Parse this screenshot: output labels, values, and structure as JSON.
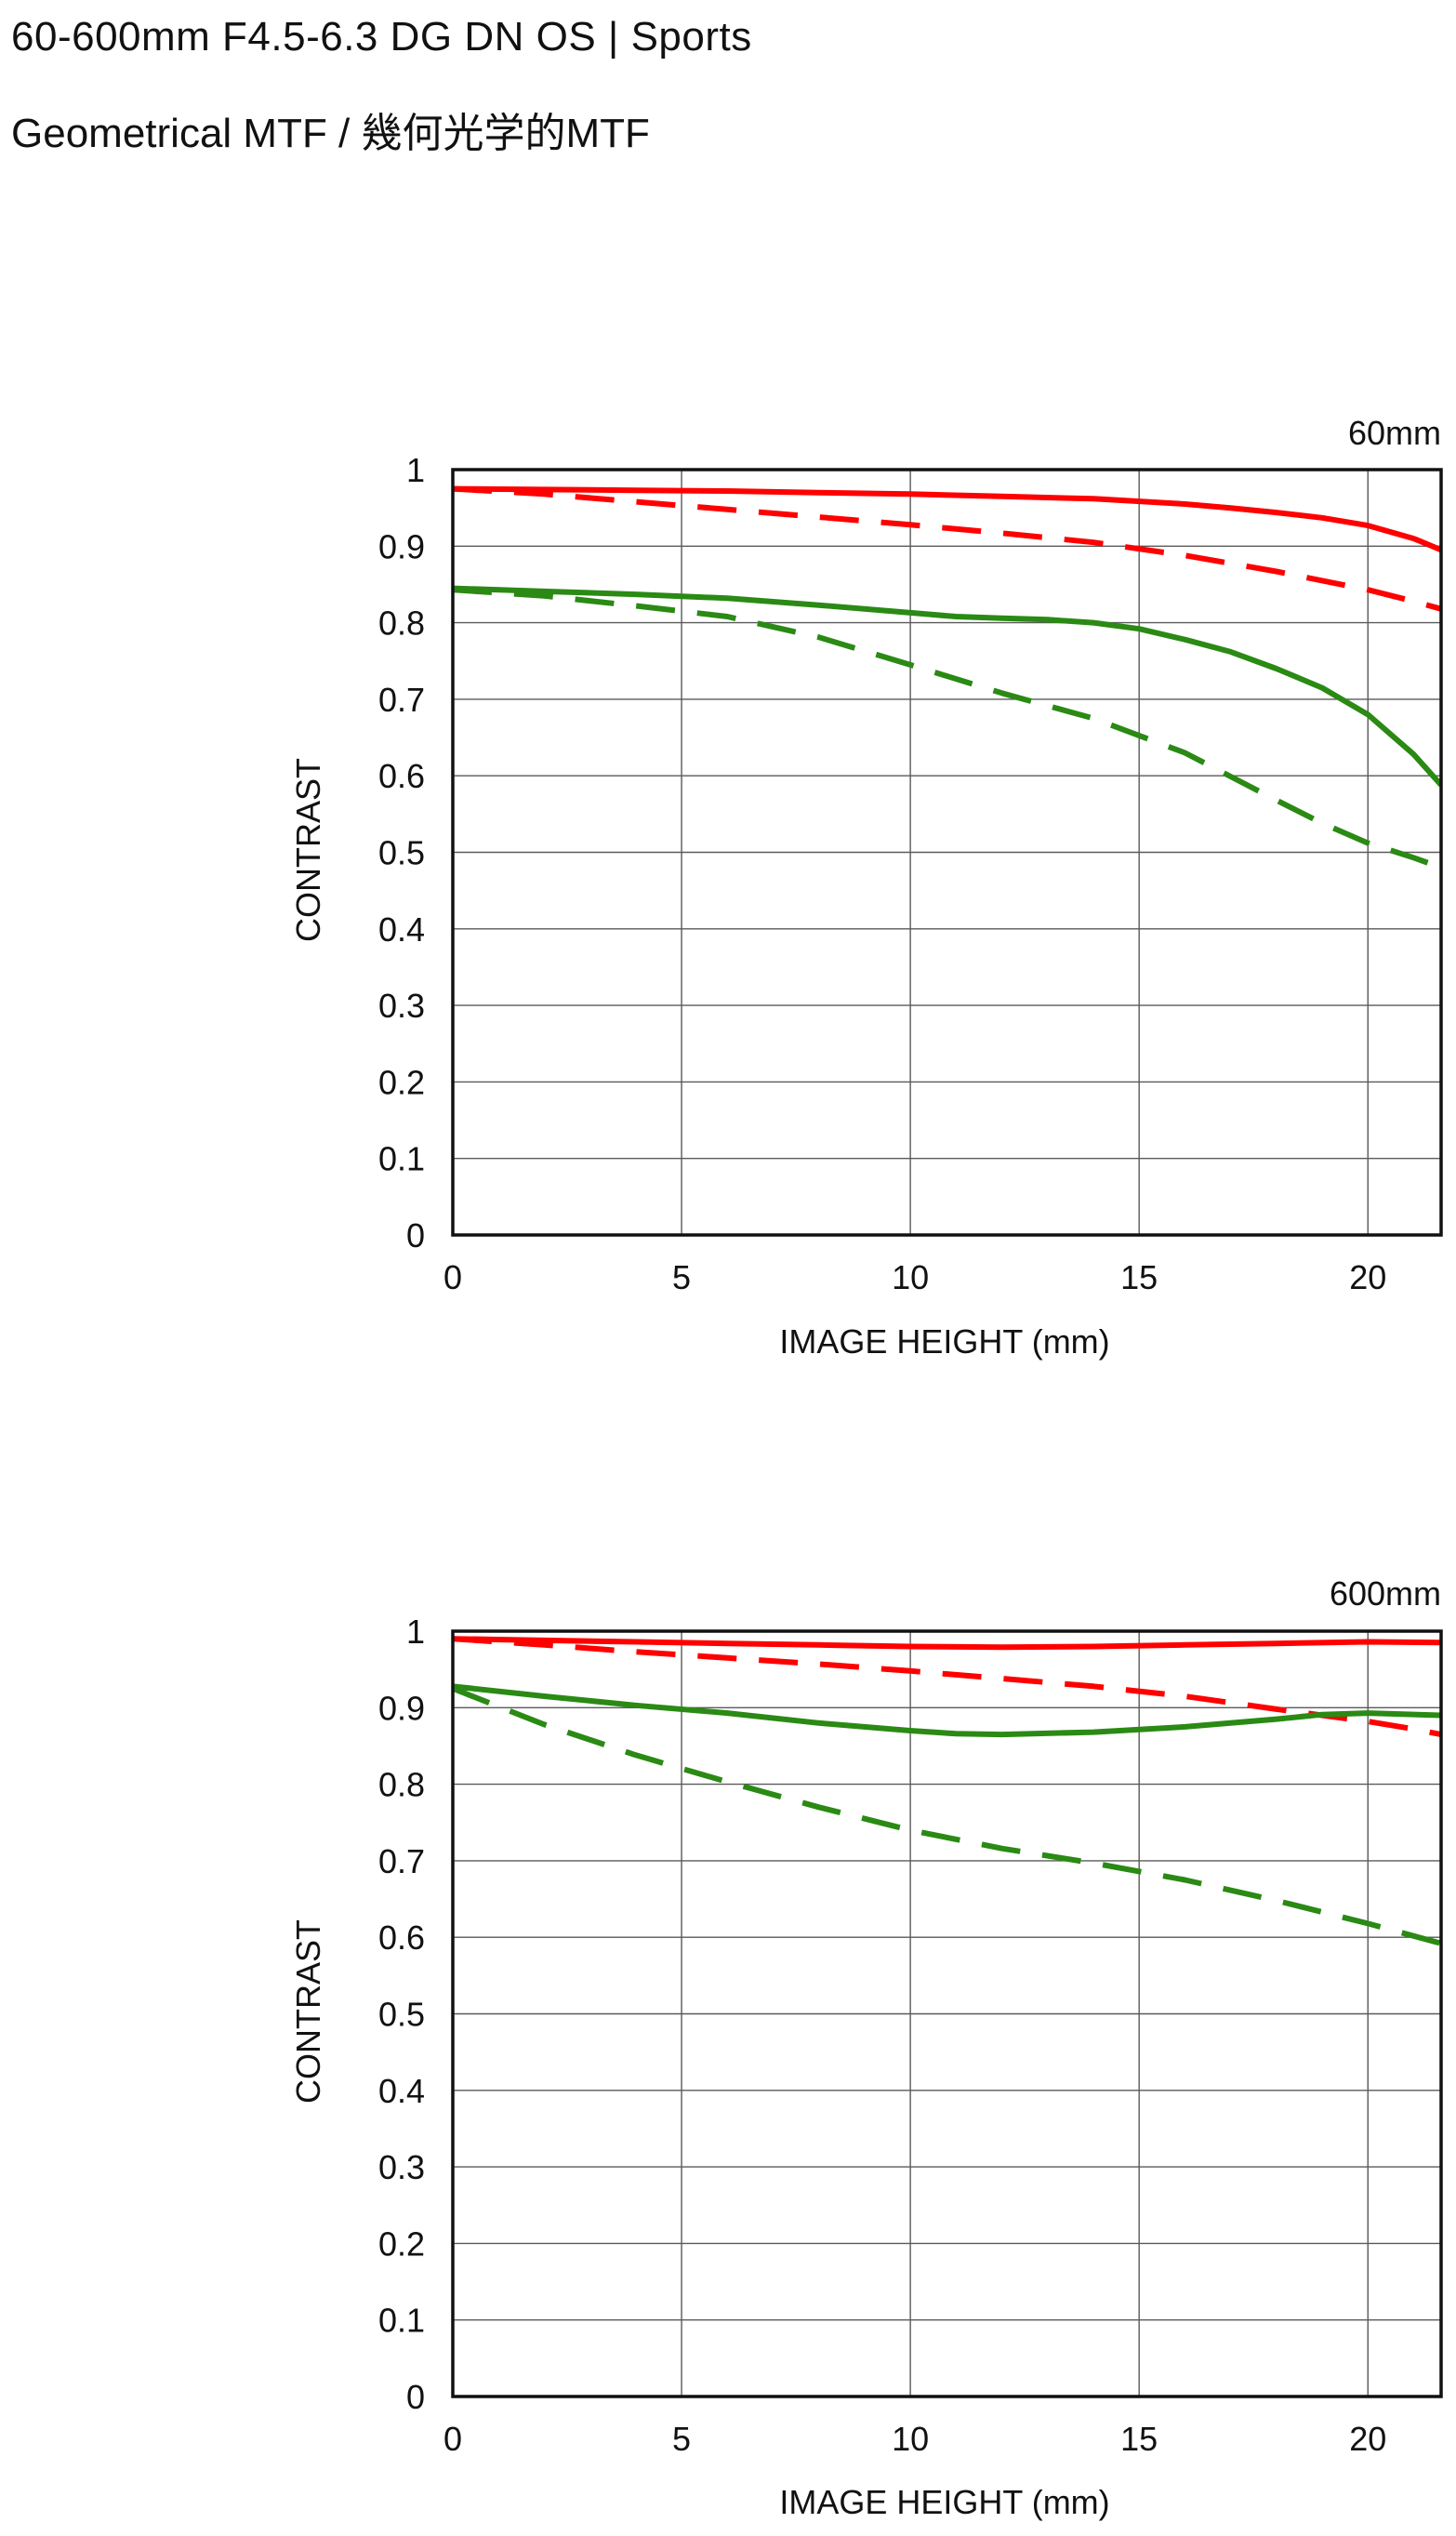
{
  "page": {
    "title": "60-600mm F4.5-6.3 DG DN OS | Sports",
    "subtitle": "Geometrical MTF / 幾何光学的MTF"
  },
  "chart_data": [
    {
      "type": "line",
      "title": "60mm",
      "xlabel": "IMAGE HEIGHT (mm)",
      "ylabel": "CONTRAST",
      "xlim": [
        0,
        21.6
      ],
      "ylim": [
        0,
        1
      ],
      "xticks": [
        "0",
        "5",
        "10",
        "15",
        "20"
      ],
      "yticks": [
        "0",
        "0.1",
        "0.2",
        "0.3",
        "0.4",
        "0.5",
        "0.6",
        "0.7",
        "0.8",
        "0.9",
        "1"
      ],
      "grid": true,
      "series": [
        {
          "color": "#ff0000",
          "dash": "solid",
          "x": [
            0,
            2,
            4,
            6,
            8,
            10,
            12,
            14,
            16,
            17,
            18,
            19,
            20,
            21,
            21.6
          ],
          "y": [
            0.975,
            0.974,
            0.973,
            0.972,
            0.97,
            0.968,
            0.965,
            0.962,
            0.955,
            0.95,
            0.944,
            0.937,
            0.927,
            0.91,
            0.895
          ]
        },
        {
          "color": "#ff0000",
          "dash": "dashed",
          "x": [
            0,
            2,
            4,
            6,
            8,
            10,
            12,
            14,
            16,
            18,
            20,
            21,
            21.6
          ],
          "y": [
            0.975,
            0.968,
            0.958,
            0.948,
            0.938,
            0.928,
            0.917,
            0.905,
            0.888,
            0.867,
            0.843,
            0.828,
            0.818
          ]
        },
        {
          "color": "#2a8a14",
          "dash": "solid",
          "x": [
            0,
            2,
            4,
            6,
            8,
            10,
            11,
            12,
            13,
            14,
            15,
            16,
            17,
            18,
            19,
            20,
            21,
            21.6
          ],
          "y": [
            0.845,
            0.841,
            0.837,
            0.832,
            0.823,
            0.813,
            0.808,
            0.806,
            0.804,
            0.8,
            0.792,
            0.778,
            0.762,
            0.74,
            0.715,
            0.68,
            0.628,
            0.588
          ]
        },
        {
          "color": "#2a8a14",
          "dash": "dashed",
          "x": [
            0,
            2,
            4,
            6,
            8,
            10,
            12,
            14,
            16,
            18,
            19,
            20,
            21,
            21.6
          ],
          "y": [
            0.843,
            0.835,
            0.822,
            0.808,
            0.781,
            0.745,
            0.708,
            0.675,
            0.63,
            0.568,
            0.538,
            0.512,
            0.493,
            0.48
          ]
        }
      ]
    },
    {
      "type": "line",
      "title": "600mm",
      "xlabel": "IMAGE HEIGHT (mm)",
      "ylabel": "CONTRAST",
      "xlim": [
        0,
        21.6
      ],
      "ylim": [
        0,
        1
      ],
      "xticks": [
        "0",
        "5",
        "10",
        "15",
        "20"
      ],
      "yticks": [
        "0",
        "0.1",
        "0.2",
        "0.3",
        "0.4",
        "0.5",
        "0.6",
        "0.7",
        "0.8",
        "0.9",
        "1"
      ],
      "grid": true,
      "series": [
        {
          "color": "#ff0000",
          "dash": "solid",
          "x": [
            0,
            2,
            4,
            6,
            8,
            10,
            12,
            14,
            16,
            18,
            20,
            21.6
          ],
          "y": [
            0.99,
            0.988,
            0.986,
            0.984,
            0.982,
            0.98,
            0.979,
            0.98,
            0.982,
            0.984,
            0.986,
            0.985
          ]
        },
        {
          "color": "#ff0000",
          "dash": "dashed",
          "x": [
            0,
            2,
            4,
            6,
            8,
            10,
            12,
            14,
            16,
            18,
            19,
            20,
            21,
            21.6
          ],
          "y": [
            0.99,
            0.982,
            0.973,
            0.965,
            0.957,
            0.948,
            0.938,
            0.928,
            0.915,
            0.898,
            0.89,
            0.882,
            0.872,
            0.865
          ]
        },
        {
          "color": "#2a8a14",
          "dash": "solid",
          "x": [
            0,
            2,
            4,
            6,
            8,
            10,
            11,
            12,
            14,
            16,
            18,
            19,
            20,
            21.6
          ],
          "y": [
            0.928,
            0.915,
            0.903,
            0.893,
            0.88,
            0.87,
            0.866,
            0.865,
            0.868,
            0.875,
            0.885,
            0.891,
            0.893,
            0.89
          ]
        },
        {
          "color": "#2a8a14",
          "dash": "dashed",
          "x": [
            0,
            2,
            4,
            6,
            8,
            10,
            12,
            14,
            16,
            18,
            20,
            21.6
          ],
          "y": [
            0.925,
            0.878,
            0.838,
            0.803,
            0.77,
            0.74,
            0.716,
            0.697,
            0.675,
            0.648,
            0.618,
            0.592
          ]
        }
      ]
    }
  ]
}
